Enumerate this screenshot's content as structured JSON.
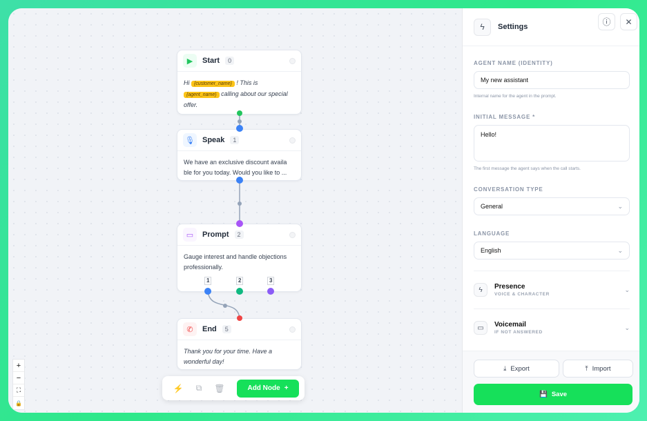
{
  "canvas": {
    "nodes": [
      {
        "title": "Start",
        "index": "0",
        "icon": "play-icon",
        "text_parts": [
          "Hi ",
          "{customer_name}",
          " ! This is ",
          "{agent_name}",
          " calling about our special offer."
        ]
      },
      {
        "title": "Speak",
        "index": "1",
        "icon": "microphone-icon",
        "text": "We have an exclusive discount availa ble for you today. Would you like to ..."
      },
      {
        "title": "Prompt",
        "index": "2",
        "icon": "message-icon",
        "text": "Gauge interest and handle objections professionally.",
        "outputs": [
          "1",
          "2",
          "3"
        ]
      },
      {
        "title": "End",
        "index": "5",
        "icon": "phone-off-icon",
        "text": "Thank you for your time. Have a wonderful day!"
      }
    ],
    "toolbar": {
      "add_node_label": "Add Node",
      "add_icon": "+"
    },
    "zoom_controls": [
      "+",
      "−",
      "⛶",
      "🔒"
    ]
  },
  "panel": {
    "title": "Settings",
    "agent_name_label": "AGENT NAME (IDENTITY)",
    "agent_name_value": "My new assistant",
    "agent_name_hint": "Internal name for the agent in the prompt.",
    "initial_message_label": "INITIAL MESSAGE *",
    "initial_message_value": "Hello!",
    "initial_message_hint": "The first message the agent says when the call starts.",
    "conversation_type_label": "CONVERSATION TYPE",
    "conversation_type_value": "General",
    "language_label": "LANGUAGE",
    "language_value": "English",
    "sections": [
      {
        "title": "Presence",
        "subtitle": "VOICE & CHARACTER",
        "icon": "lightning-icon"
      },
      {
        "title": "Voicemail",
        "subtitle": "IF NOT ANSWERED",
        "icon": "message-icon"
      }
    ],
    "export_label": "Export",
    "import_label": "Import",
    "save_label": "Save"
  },
  "colors": {
    "accent": "#16e05a",
    "start": "#22c55e",
    "speak": "#3b82f6",
    "prompt": "#a855f7",
    "end": "#ef4444"
  }
}
